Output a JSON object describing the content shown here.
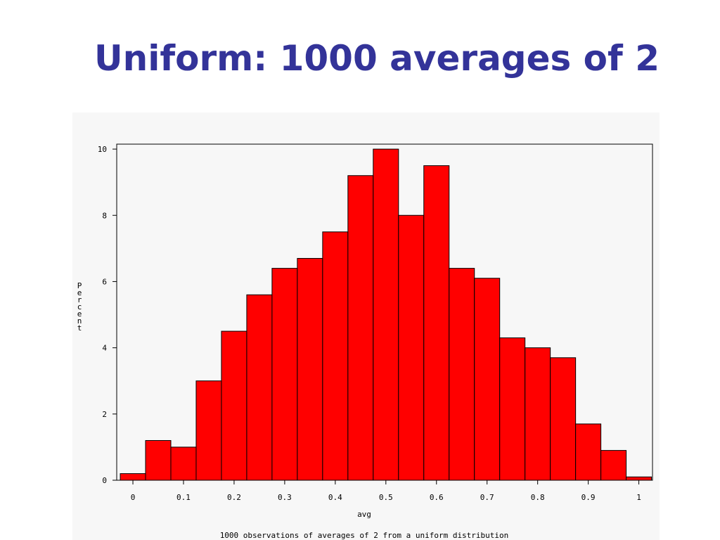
{
  "chart_data": {
    "type": "histogram",
    "title": "Uniform: 1000 averages of 2",
    "caption": "1000 observations of averages of 2 from a uniform distribution",
    "xlabel": "avg",
    "ylabel": "Percent",
    "bins": [
      -0.025,
      0.025,
      0.075,
      0.125,
      0.175,
      0.225,
      0.275,
      0.325,
      0.375,
      0.425,
      0.475,
      0.525,
      0.575,
      0.625,
      0.675,
      0.725,
      0.775,
      0.825,
      0.875,
      0.925,
      0.975,
      1.025
    ],
    "values": [
      0.2,
      1.2,
      1.0,
      3.0,
      4.5,
      5.6,
      6.4,
      6.7,
      7.5,
      9.2,
      10.0,
      8.0,
      9.5,
      6.4,
      6.1,
      4.3,
      4.0,
      3.7,
      1.7,
      0.9,
      0.1
    ],
    "color": "#ff0000",
    "xlim": [
      -0.032,
      1.027
    ],
    "ylim": [
      0,
      10.15
    ],
    "xticks": [
      0,
      0.1,
      0.2,
      0.3,
      0.4,
      0.5,
      0.6,
      0.7,
      0.8,
      0.9,
      1
    ],
    "yticks": [
      0,
      2,
      4,
      6,
      8,
      10
    ]
  }
}
